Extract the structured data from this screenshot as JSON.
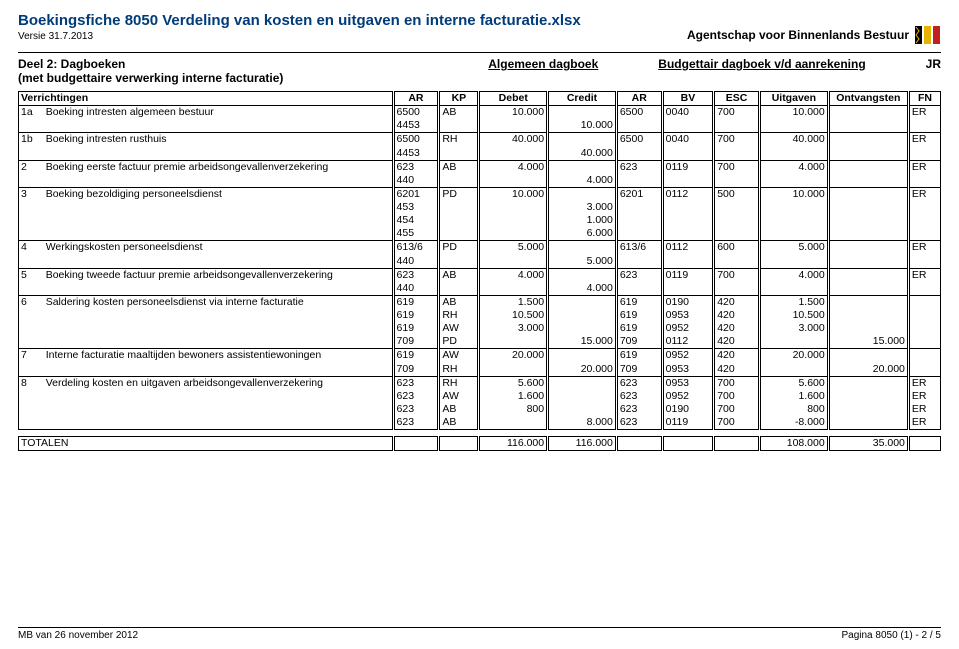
{
  "header": {
    "title": "Boekingsfiche 8050 Verdeling van kosten en uitgaven en interne facturatie.xlsx",
    "version": "Versie 31.7.2013",
    "agency": "Agentschap voor Binnenlands Bestuur"
  },
  "section": {
    "left_line1": "Deel 2: Dagboeken",
    "left_line2": "(met budgettaire verwerking interne facturatie)",
    "mid": "Algemeen dagboek",
    "right": "Budgettair dagboek v/d aanrekening",
    "jr": "JR"
  },
  "columns": [
    "Verrichtingen",
    "AR",
    "KP",
    "Debet",
    "Credit",
    "AR",
    "BV",
    "ESC",
    "Uitgaven",
    "Ontvangsten",
    "FN"
  ],
  "groups": [
    {
      "id": "1a",
      "desc": "Boeking intresten algemeen bestuur",
      "rows": [
        {
          "ar1": "6500",
          "kp": "AB",
          "deb": "10.000",
          "cre": "",
          "ar2": "6500",
          "bv": "0040",
          "esc": "700",
          "uit": "10.000",
          "ont": "",
          "fn": "ER"
        },
        {
          "ar1": "4453",
          "kp": "",
          "deb": "",
          "cre": "10.000",
          "ar2": "",
          "bv": "",
          "esc": "",
          "uit": "",
          "ont": "",
          "fn": ""
        }
      ]
    },
    {
      "id": "1b",
      "desc": "Boeking intresten rusthuis",
      "rows": [
        {
          "ar1": "6500",
          "kp": "RH",
          "deb": "40.000",
          "cre": "",
          "ar2": "6500",
          "bv": "0040",
          "esc": "700",
          "uit": "40.000",
          "ont": "",
          "fn": "ER"
        },
        {
          "ar1": "4453",
          "kp": "",
          "deb": "",
          "cre": "40.000",
          "ar2": "",
          "bv": "",
          "esc": "",
          "uit": "",
          "ont": "",
          "fn": ""
        }
      ]
    },
    {
      "id": "2",
      "desc": "Boeking eerste factuur premie arbeidsongevallenverzekering",
      "rows": [
        {
          "ar1": "623",
          "kp": "AB",
          "deb": "4.000",
          "cre": "",
          "ar2": "623",
          "bv": "0119",
          "esc": "700",
          "uit": "4.000",
          "ont": "",
          "fn": "ER"
        },
        {
          "ar1": "440",
          "kp": "",
          "deb": "",
          "cre": "4.000",
          "ar2": "",
          "bv": "",
          "esc": "",
          "uit": "",
          "ont": "",
          "fn": ""
        }
      ]
    },
    {
      "id": "3",
      "desc": "Boeking bezoldiging personeelsdienst",
      "rows": [
        {
          "ar1": "6201",
          "kp": "PD",
          "deb": "10.000",
          "cre": "",
          "ar2": "6201",
          "bv": "0112",
          "esc": "500",
          "uit": "10.000",
          "ont": "",
          "fn": "ER"
        },
        {
          "ar1": "453",
          "kp": "",
          "deb": "",
          "cre": "3.000",
          "ar2": "",
          "bv": "",
          "esc": "",
          "uit": "",
          "ont": "",
          "fn": ""
        },
        {
          "ar1": "454",
          "kp": "",
          "deb": "",
          "cre": "1.000",
          "ar2": "",
          "bv": "",
          "esc": "",
          "uit": "",
          "ont": "",
          "fn": ""
        },
        {
          "ar1": "455",
          "kp": "",
          "deb": "",
          "cre": "6.000",
          "ar2": "",
          "bv": "",
          "esc": "",
          "uit": "",
          "ont": "",
          "fn": ""
        }
      ]
    },
    {
      "id": "4",
      "desc": "Werkingskosten personeelsdienst",
      "rows": [
        {
          "ar1": "613/6",
          "kp": "PD",
          "deb": "5.000",
          "cre": "",
          "ar2": "613/6",
          "bv": "0112",
          "esc": "600",
          "uit": "5.000",
          "ont": "",
          "fn": "ER"
        },
        {
          "ar1": "440",
          "kp": "",
          "deb": "",
          "cre": "5.000",
          "ar2": "",
          "bv": "",
          "esc": "",
          "uit": "",
          "ont": "",
          "fn": ""
        }
      ]
    },
    {
      "id": "5",
      "desc": "Boeking tweede factuur premie arbeidsongevallenverzekering",
      "rows": [
        {
          "ar1": "623",
          "kp": "AB",
          "deb": "4.000",
          "cre": "",
          "ar2": "623",
          "bv": "0119",
          "esc": "700",
          "uit": "4.000",
          "ont": "",
          "fn": "ER"
        },
        {
          "ar1": "440",
          "kp": "",
          "deb": "",
          "cre": "4.000",
          "ar2": "",
          "bv": "",
          "esc": "",
          "uit": "",
          "ont": "",
          "fn": ""
        }
      ]
    },
    {
      "id": "6",
      "desc": "Saldering kosten personeelsdienst via interne facturatie",
      "rows": [
        {
          "ar1": "619",
          "kp": "AB",
          "deb": "1.500",
          "cre": "",
          "ar2": "619",
          "bv": "0190",
          "esc": "420",
          "uit": "1.500",
          "ont": "",
          "fn": ""
        },
        {
          "ar1": "619",
          "kp": "RH",
          "deb": "10.500",
          "cre": "",
          "ar2": "619",
          "bv": "0953",
          "esc": "420",
          "uit": "10.500",
          "ont": "",
          "fn": ""
        },
        {
          "ar1": "619",
          "kp": "AW",
          "deb": "3.000",
          "cre": "",
          "ar2": "619",
          "bv": "0952",
          "esc": "420",
          "uit": "3.000",
          "ont": "",
          "fn": ""
        },
        {
          "ar1": "709",
          "kp": "PD",
          "deb": "",
          "cre": "15.000",
          "ar2": "709",
          "bv": "0112",
          "esc": "420",
          "uit": "",
          "ont": "15.000",
          "fn": ""
        }
      ]
    },
    {
      "id": "7",
      "desc": "Interne facturatie maaltijden bewoners assistentiewoningen",
      "rows": [
        {
          "ar1": "619",
          "kp": "AW",
          "deb": "20.000",
          "cre": "",
          "ar2": "619",
          "bv": "0952",
          "esc": "420",
          "uit": "20.000",
          "ont": "",
          "fn": ""
        },
        {
          "ar1": "709",
          "kp": "RH",
          "deb": "",
          "cre": "20.000",
          "ar2": "709",
          "bv": "0953",
          "esc": "420",
          "uit": "",
          "ont": "20.000",
          "fn": ""
        }
      ]
    },
    {
      "id": "8",
      "desc": "Verdeling kosten en uitgaven arbeidsongevallenverzekering",
      "rows": [
        {
          "ar1": "623",
          "kp": "RH",
          "deb": "5.600",
          "cre": "",
          "ar2": "623",
          "bv": "0953",
          "esc": "700",
          "uit": "5.600",
          "ont": "",
          "fn": "ER"
        },
        {
          "ar1": "623",
          "kp": "AW",
          "deb": "1.600",
          "cre": "",
          "ar2": "623",
          "bv": "0952",
          "esc": "700",
          "uit": "1.600",
          "ont": "",
          "fn": "ER"
        },
        {
          "ar1": "623",
          "kp": "AB",
          "deb": "800",
          "cre": "",
          "ar2": "623",
          "bv": "0190",
          "esc": "700",
          "uit": "800",
          "ont": "",
          "fn": "ER"
        },
        {
          "ar1": "623",
          "kp": "AB",
          "deb": "",
          "cre": "8.000",
          "ar2": "623",
          "bv": "0119",
          "esc": "700",
          "uit": "-8.000",
          "ont": "",
          "fn": "ER"
        }
      ]
    }
  ],
  "totals": {
    "label": "TOTALEN",
    "deb": "116.000",
    "cre": "116.000",
    "uit": "108.000",
    "ont": "35.000"
  },
  "footer": {
    "left": "MB van 26 november 2012",
    "right": "Pagina 8050 (1) - 2 / 5"
  },
  "colors": {
    "title": "#003b7a",
    "logo_red": "#c21f1f",
    "logo_yellow": "#e6b400",
    "logo_black": "#000000"
  }
}
